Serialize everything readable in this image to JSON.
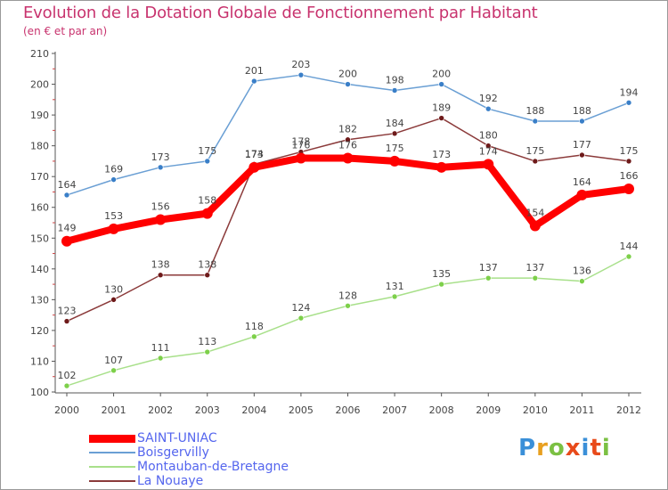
{
  "title": "Evolution de la Dotation Globale de Fonctionnement par Habitant",
  "subtitle": "(en € et par an)",
  "logo_text": "Proxiti",
  "chart_data": {
    "type": "line",
    "title": "Evolution de la Dotation Globale de Fonctionnement par Habitant",
    "subtitle": "(en € et par an)",
    "xlabel": "",
    "ylabel": "",
    "ylim": [
      100,
      210
    ],
    "yticks": [
      100,
      110,
      120,
      130,
      140,
      150,
      160,
      170,
      180,
      190,
      200,
      210
    ],
    "grid": false,
    "legend_position": "bottom-left",
    "categories": [
      "2000",
      "2001",
      "2002",
      "2003",
      "2004",
      "2005",
      "2006",
      "2007",
      "2008",
      "2009",
      "2010",
      "2011",
      "2012"
    ],
    "series": [
      {
        "name": "Boisgervilly",
        "color": "#6a9fd4",
        "marker": "#3a7fc8",
        "values": [
          164,
          169,
          173,
          175,
          201,
          203,
          200,
          198,
          200,
          192,
          188,
          188,
          194
        ]
      },
      {
        "name": "Montauban-de-Bretagne",
        "color": "#a8e08a",
        "marker": "#7dd04a",
        "values": [
          102,
          107,
          111,
          113,
          118,
          124,
          128,
          131,
          135,
          137,
          137,
          136,
          144
        ]
      },
      {
        "name": "La Nouaye",
        "color": "#8b3a3a",
        "marker": "#6e1a1a",
        "values": [
          123,
          130,
          138,
          138,
          174,
          178,
          182,
          184,
          189,
          180,
          175,
          177,
          175
        ]
      },
      {
        "name": "SAINT-UNIAC",
        "color": "#ff0000",
        "marker": "#ff0000",
        "values": [
          149,
          153,
          156,
          158,
          173,
          176,
          176,
          175,
          173,
          174,
          154,
          164,
          166
        ]
      }
    ],
    "legend": [
      "SAINT-UNIAC",
      "Boisgervilly",
      "Montauban-de-Bretagne",
      "La Nouaye"
    ]
  }
}
